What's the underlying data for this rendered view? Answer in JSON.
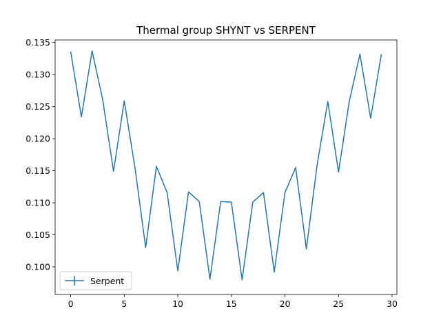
{
  "chart_data": {
    "type": "line",
    "title": "Thermal group SHYNT vs SERPENT",
    "xlabel": "",
    "ylabel": "",
    "x": [
      0,
      1,
      2,
      3,
      4,
      5,
      6,
      7,
      8,
      9,
      10,
      11,
      12,
      13,
      14,
      15,
      16,
      17,
      18,
      19,
      20,
      21,
      22,
      23,
      24,
      25,
      26,
      27,
      28,
      29
    ],
    "xlim": [
      -1.45,
      30.45
    ],
    "ylim": [
      0.0957,
      0.1354
    ],
    "xticks": [
      0,
      5,
      10,
      15,
      20,
      25,
      30
    ],
    "xtick_labels": [
      "0",
      "5",
      "10",
      "15",
      "20",
      "25",
      "30"
    ],
    "yticks": [
      0.1,
      0.105,
      0.11,
      0.115,
      0.12,
      0.125,
      0.13,
      0.135
    ],
    "ytick_labels": [
      "0.100",
      "0.105",
      "0.110",
      "0.115",
      "0.120",
      "0.125",
      "0.130",
      "0.135"
    ],
    "grid": false,
    "legend_position": "lower-left",
    "series": [
      {
        "name": "Serpent",
        "color": "#1f77b4",
        "values": [
          0.1336,
          0.1234,
          0.1337,
          0.126,
          0.1149,
          0.1259,
          0.1155,
          0.103,
          0.1157,
          0.1116,
          0.0994,
          0.1117,
          0.1102,
          0.0981,
          0.1102,
          0.1101,
          0.098,
          0.1101,
          0.1116,
          0.0992,
          0.1116,
          0.1155,
          0.1028,
          0.1159,
          0.1258,
          0.1148,
          0.1258,
          0.1332,
          0.1232,
          0.1332
        ]
      }
    ]
  }
}
